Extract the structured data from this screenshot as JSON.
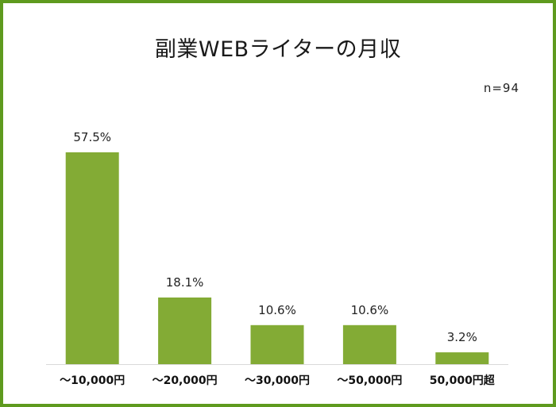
{
  "chart_data": {
    "type": "bar",
    "title": "副業WEBライターの月収",
    "sample_size": "n=94",
    "categories": [
      "～10,000円",
      "～20,000円",
      "～30,000円",
      "～50,000円",
      "50,000円超"
    ],
    "values": [
      57.5,
      18.1,
      10.6,
      10.6,
      3.2
    ],
    "value_labels": [
      "57.5%",
      "18.1%",
      "10.6%",
      "10.6%",
      "3.2%"
    ],
    "unit": "%",
    "ylim": [
      0,
      60
    ],
    "grid": false,
    "legend": "none",
    "colors": {
      "bar": "#83ab35",
      "frame": "#5e9a1e",
      "axis": "#d9d9d9"
    }
  }
}
